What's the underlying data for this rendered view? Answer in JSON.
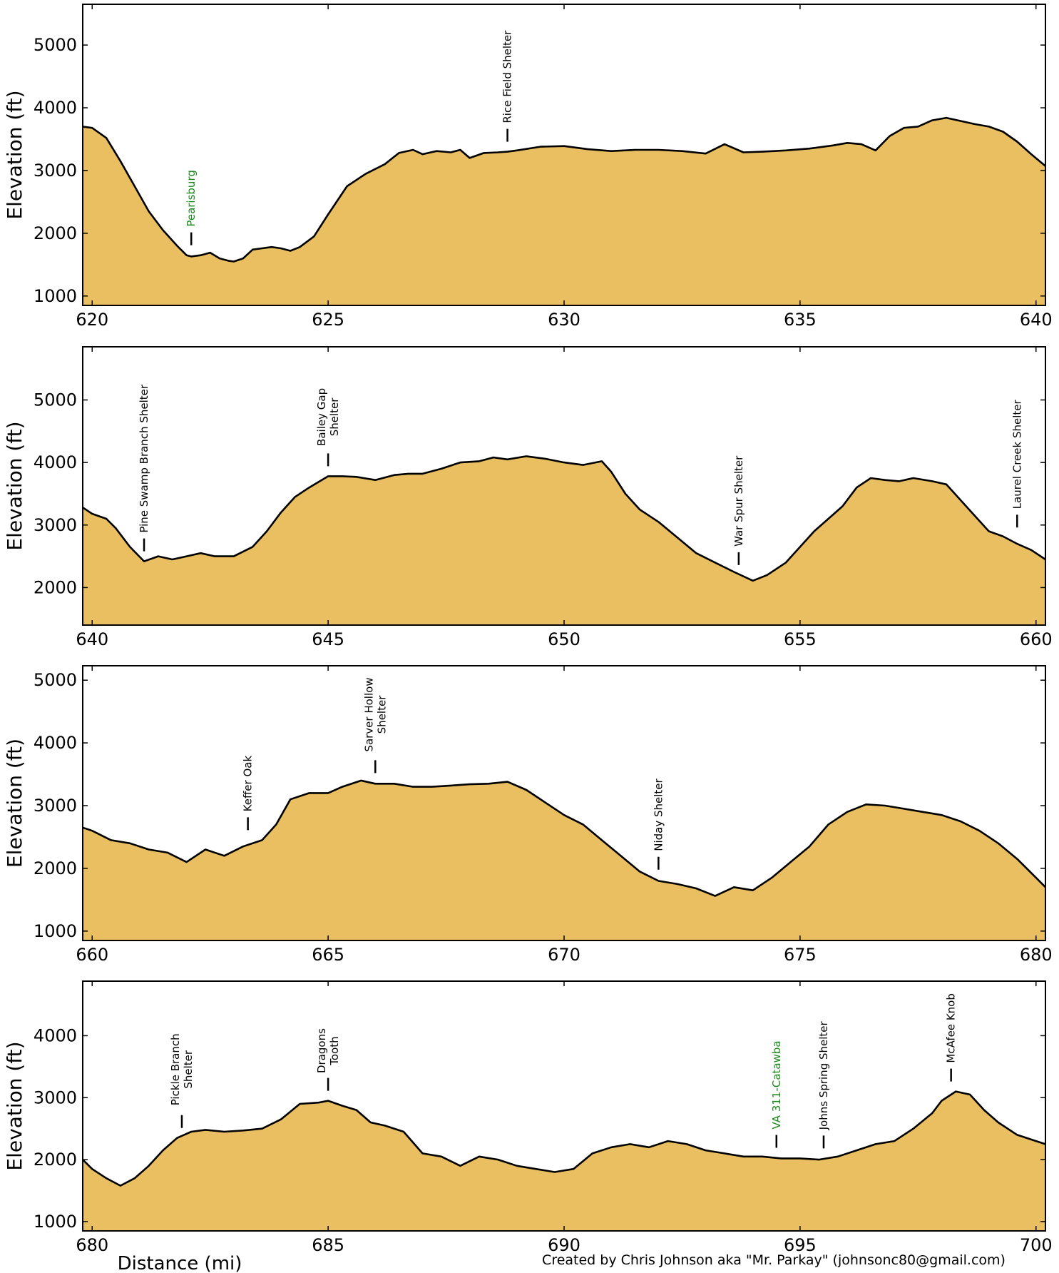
{
  "colors": {
    "fill": "#e9bf61",
    "line": "#000000",
    "town_label": "#1a8a1a",
    "shelter_label": "#000000"
  },
  "footer": {
    "xlabel": "Distance (mi)",
    "credit": "Created by Chris Johnson aka \"Mr. Parkay\" (johnsonc80@gmail.com)"
  },
  "chart_data": [
    {
      "type": "area",
      "xlim": [
        619.8,
        640.2
      ],
      "ylim": [
        850,
        5650
      ],
      "xticks": [
        620,
        625,
        630,
        635,
        640
      ],
      "yticks": [
        1000,
        2000,
        3000,
        4000,
        5000
      ],
      "ylabel": "Elevation (ft)",
      "elevation": {
        "x": [
          619.8,
          620.0,
          620.3,
          620.6,
          620.9,
          621.2,
          621.5,
          621.8,
          622.0,
          622.1,
          622.3,
          622.5,
          622.7,
          622.9,
          623.0,
          623.2,
          623.4,
          623.6,
          623.8,
          624.0,
          624.2,
          624.4,
          624.7,
          625.0,
          625.4,
          625.8,
          626.2,
          626.5,
          626.8,
          627.0,
          627.3,
          627.6,
          627.8,
          628.0,
          628.3,
          628.6,
          628.8,
          629.0,
          629.5,
          630.0,
          630.5,
          631.0,
          631.5,
          632.0,
          632.5,
          633.0,
          633.4,
          633.8,
          634.2,
          634.7,
          635.2,
          635.7,
          636.0,
          636.3,
          636.6,
          636.9,
          637.2,
          637.5,
          637.8,
          638.1,
          638.4,
          638.7,
          639.0,
          639.3,
          639.6,
          639.9,
          640.2
        ],
        "y": [
          3700,
          3680,
          3520,
          3150,
          2750,
          2350,
          2050,
          1800,
          1650,
          1630,
          1650,
          1690,
          1600,
          1560,
          1550,
          1600,
          1740,
          1760,
          1780,
          1760,
          1720,
          1780,
          1950,
          2300,
          2750,
          2950,
          3100,
          3280,
          3330,
          3260,
          3310,
          3290,
          3330,
          3200,
          3280,
          3290,
          3300,
          3320,
          3380,
          3390,
          3340,
          3310,
          3330,
          3330,
          3310,
          3270,
          3420,
          3290,
          3300,
          3320,
          3350,
          3400,
          3440,
          3420,
          3320,
          3550,
          3680,
          3700,
          3800,
          3840,
          3790,
          3740,
          3700,
          3620,
          3460,
          3260,
          3070
        ]
      },
      "landmarks": [
        {
          "mile": 622.1,
          "label": [
            "Pearisburg"
          ],
          "kind": "town",
          "elev": 1650
        },
        {
          "mile": 628.8,
          "label": [
            "Rice Field Shelter"
          ],
          "kind": "shelter",
          "elev": 3300
        }
      ]
    },
    {
      "type": "area",
      "xlim": [
        639.8,
        660.2
      ],
      "ylim": [
        1400,
        5850
      ],
      "xticks": [
        640,
        645,
        650,
        655,
        660
      ],
      "yticks": [
        2000,
        3000,
        4000,
        5000
      ],
      "ylabel": "Elevation (ft)",
      "elevation": {
        "x": [
          639.8,
          640.0,
          640.3,
          640.5,
          640.8,
          641.1,
          641.4,
          641.7,
          642.0,
          642.3,
          642.6,
          643.0,
          643.4,
          643.7,
          644.0,
          644.3,
          644.6,
          645.0,
          645.3,
          645.6,
          646.0,
          646.4,
          646.7,
          647.0,
          647.4,
          647.8,
          648.2,
          648.5,
          648.8,
          649.2,
          649.6,
          650.0,
          650.4,
          650.8,
          651.0,
          651.3,
          651.6,
          652.0,
          652.4,
          652.8,
          653.2,
          653.6,
          654.0,
          654.3,
          654.7,
          655.0,
          655.3,
          655.6,
          655.9,
          656.2,
          656.5,
          656.8,
          657.1,
          657.4,
          657.8,
          658.1,
          658.4,
          658.7,
          659.0,
          659.3,
          659.6,
          659.9,
          660.2
        ],
        "y": [
          3280,
          3180,
          3100,
          2950,
          2650,
          2420,
          2500,
          2450,
          2500,
          2550,
          2500,
          2500,
          2650,
          2900,
          3200,
          3450,
          3600,
          3780,
          3780,
          3770,
          3720,
          3800,
          3820,
          3820,
          3900,
          4000,
          4020,
          4080,
          4050,
          4100,
          4060,
          4000,
          3960,
          4020,
          3850,
          3500,
          3250,
          3050,
          2800,
          2550,
          2400,
          2250,
          2110,
          2200,
          2400,
          2650,
          2900,
          3100,
          3300,
          3600,
          3750,
          3720,
          3700,
          3750,
          3700,
          3650,
          3400,
          3150,
          2900,
          2820,
          2700,
          2600,
          2450
        ]
      },
      "landmarks": [
        {
          "mile": 641.1,
          "label": [
            "Pine Swamp Branch Shelter"
          ],
          "kind": "shelter",
          "elev": 2420
        },
        {
          "mile": 645.0,
          "label": [
            "Bailey Gap",
            "Shelter"
          ],
          "kind": "shelter",
          "elev": 3780
        },
        {
          "mile": 653.7,
          "label": [
            "War Spur Shelter"
          ],
          "kind": "shelter",
          "elev": 2200
        },
        {
          "mile": 659.6,
          "label": [
            "Laurel Creek Shelter"
          ],
          "kind": "shelter",
          "elev": 2800
        }
      ]
    },
    {
      "type": "area",
      "xlim": [
        659.8,
        680.2
      ],
      "ylim": [
        850,
        5230
      ],
      "xticks": [
        660,
        665,
        670,
        675,
        680
      ],
      "yticks": [
        1000,
        2000,
        3000,
        4000,
        5000
      ],
      "ylabel": "Elevation (ft)",
      "elevation": {
        "x": [
          659.8,
          660.0,
          660.4,
          660.8,
          661.2,
          661.6,
          662.0,
          662.4,
          662.8,
          663.2,
          663.6,
          663.9,
          664.2,
          664.6,
          665.0,
          665.3,
          665.7,
          666.0,
          666.4,
          666.8,
          667.2,
          667.6,
          668.0,
          668.4,
          668.8,
          669.2,
          669.6,
          670.0,
          670.4,
          670.8,
          671.2,
          671.6,
          672.0,
          672.4,
          672.8,
          673.2,
          673.6,
          674.0,
          674.4,
          674.8,
          675.2,
          675.6,
          676.0,
          676.4,
          676.8,
          677.2,
          677.6,
          678.0,
          678.4,
          678.8,
          679.2,
          679.6,
          680.0,
          680.2
        ],
        "y": [
          2650,
          2600,
          2450,
          2400,
          2300,
          2250,
          2100,
          2300,
          2200,
          2350,
          2450,
          2700,
          3100,
          3200,
          3200,
          3300,
          3400,
          3350,
          3350,
          3300,
          3300,
          3320,
          3340,
          3350,
          3380,
          3250,
          3050,
          2850,
          2700,
          2450,
          2200,
          1950,
          1800,
          1750,
          1680,
          1560,
          1700,
          1650,
          1850,
          2100,
          2350,
          2700,
          2900,
          3020,
          3000,
          2950,
          2900,
          2850,
          2750,
          2600,
          2400,
          2150,
          1850,
          1700
        ]
      },
      "landmarks": [
        {
          "mile": 663.3,
          "label": [
            "Keffer Oak"
          ],
          "kind": "shelter",
          "elev": 2450
        },
        {
          "mile": 666.0,
          "label": [
            "Sarver Hollow",
            "Shelter"
          ],
          "kind": "shelter",
          "elev": 3360
        },
        {
          "mile": 672.0,
          "label": [
            "Niday Shelter"
          ],
          "kind": "shelter",
          "elev": 1820
        }
      ]
    },
    {
      "type": "area",
      "xlim": [
        679.8,
        700.2
      ],
      "ylim": [
        850,
        4880
      ],
      "xticks": [
        680,
        685,
        690,
        695,
        700
      ],
      "yticks": [
        1000,
        2000,
        3000,
        4000
      ],
      "ylabel": "Elevation (ft)",
      "elevation": {
        "x": [
          679.8,
          680.0,
          680.3,
          680.6,
          680.9,
          681.2,
          681.5,
          681.8,
          682.1,
          682.4,
          682.8,
          683.2,
          683.6,
          684.0,
          684.4,
          684.8,
          685.0,
          685.3,
          685.6,
          685.9,
          686.2,
          686.6,
          687.0,
          687.4,
          687.8,
          688.2,
          688.6,
          689.0,
          689.4,
          689.8,
          690.2,
          690.6,
          691.0,
          691.4,
          691.8,
          692.2,
          692.6,
          693.0,
          693.4,
          693.8,
          694.2,
          694.6,
          695.0,
          695.4,
          695.8,
          696.2,
          696.6,
          697.0,
          697.4,
          697.8,
          698.0,
          698.3,
          698.6,
          698.9,
          699.2,
          699.6,
          700.0,
          700.2
        ],
        "y": [
          2000,
          1850,
          1700,
          1580,
          1700,
          1900,
          2150,
          2350,
          2450,
          2480,
          2450,
          2470,
          2500,
          2650,
          2900,
          2920,
          2950,
          2870,
          2800,
          2600,
          2550,
          2450,
          2100,
          2050,
          1900,
          2050,
          2000,
          1900,
          1850,
          1800,
          1850,
          2100,
          2200,
          2250,
          2200,
          2300,
          2250,
          2150,
          2100,
          2050,
          2050,
          2020,
          2020,
          2000,
          2050,
          2150,
          2250,
          2300,
          2500,
          2750,
          2950,
          3100,
          3050,
          2800,
          2600,
          2400,
          2300,
          2250
        ]
      },
      "landmarks": [
        {
          "mile": 681.9,
          "label": [
            "Pickle Branch",
            "Shelter"
          ],
          "kind": "shelter",
          "elev": 2350
        },
        {
          "mile": 685.0,
          "label": [
            "Dragons",
            "Tooth"
          ],
          "kind": "shelter",
          "elev": 2950
        },
        {
          "mile": 694.5,
          "label": [
            "VA 311-Catawba"
          ],
          "kind": "town",
          "elev": 2030
        },
        {
          "mile": 695.5,
          "label": [
            "Johns Spring Shelter"
          ],
          "kind": "shelter",
          "elev": 2020
        },
        {
          "mile": 698.2,
          "label": [
            "McAfee Knob"
          ],
          "kind": "shelter",
          "elev": 3100
        }
      ]
    }
  ]
}
